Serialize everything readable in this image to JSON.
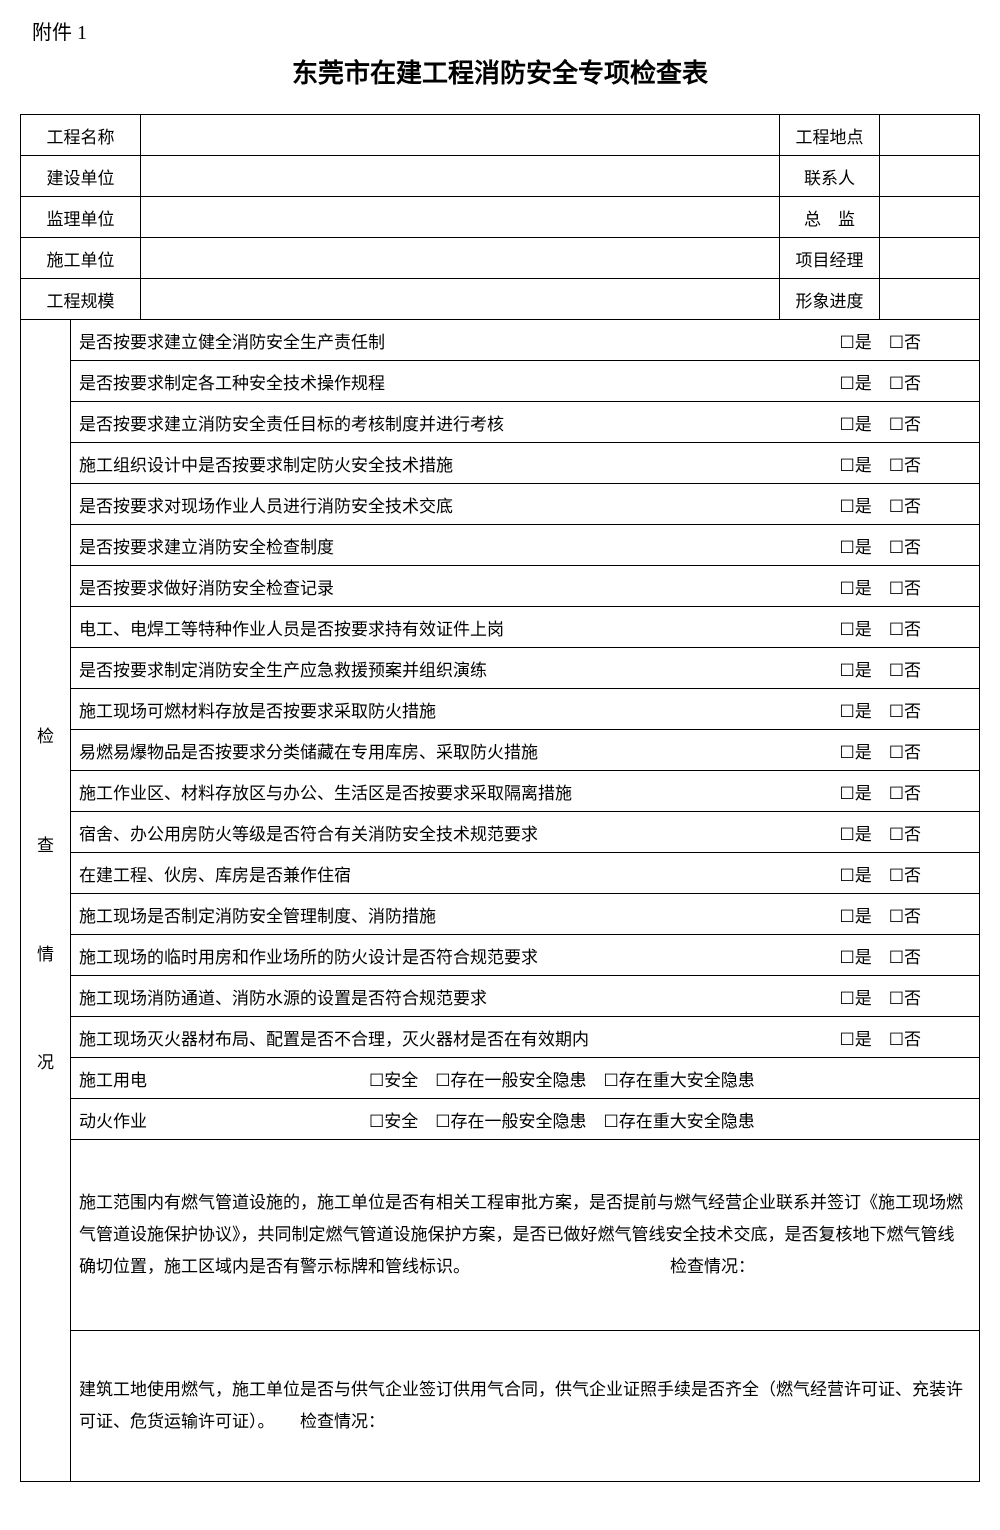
{
  "attachment": "附件 1",
  "title": "东莞市在建工程消防安全专项检查表",
  "header": {
    "rows": [
      {
        "l1": "工程名称",
        "l2": "工程地点"
      },
      {
        "l1": "建设单位",
        "l2": "联系人"
      },
      {
        "l1": "监理单位",
        "l2": "总　监"
      },
      {
        "l1": "施工单位",
        "l2": "项目经理"
      },
      {
        "l1": "工程规模",
        "l2": "形象进度"
      }
    ]
  },
  "side_label": "检\n查\n情\n况",
  "yn": {
    "yes": "☐是",
    "no": "☐否"
  },
  "check_items": [
    "是否按要求建立健全消防安全生产责任制",
    "是否按要求制定各工种安全技术操作规程",
    "是否按要求建立消防安全责任目标的考核制度并进行考核",
    "施工组织设计中是否按要求制定防火安全技术措施",
    "是否按要求对现场作业人员进行消防安全技术交底",
    "是否按要求建立消防安全检查制度",
    "是否按要求做好消防安全检查记录",
    "电工、电焊工等特种作业人员是否按要求持有效证件上岗",
    "是否按要求制定消防安全生产应急救援预案并组织演练",
    "施工现场可燃材料存放是否按要求采取防火措施",
    "易燃易爆物品是否按要求分类储藏在专用库房、采取防火措施",
    "施工作业区、材料存放区与办公、生活区是否按要求采取隔离措施",
    "宿舍、办公用房防火等级是否符合有关消防安全技术规范要求",
    "在建工程、伙房、库房是否兼作住宿",
    "施工现场是否制定消防安全管理制度、消防措施",
    "施工现场的临时用房和作业场所的防火设计是否符合规范要求",
    "施工现场消防通道、消防水源的设置是否符合规范要求",
    "施工现场灭火器材布局、配置是否不合理，灭火器材是否在有效期内"
  ],
  "safety_opts": "☐安全　☐存在一般安全隐患　☐存在重大安全隐患",
  "safety_rows": [
    "施工用电",
    "动火作业"
  ],
  "para1_text": "施工范围内有燃气管道设施的，施工单位是否有相关工程审批方案，是否提前与燃气经营企业联系并签订《施工现场燃气管道设施保护协议》，共同制定燃气管道设施保护方案，是否已做好燃气管线安全技术交底，是否复核地下燃气管线确切位置，施工区域内是否有警示标牌和管线标识。",
  "para1_label": "检查情况：",
  "para2_text": "建筑工地使用燃气，施工单位是否与供气企业签订供用气合同，供气企业证照手续是否齐全（燃气经营许可证、充装许可证、危货运输许可证）。",
  "para2_label": "检查情况："
}
